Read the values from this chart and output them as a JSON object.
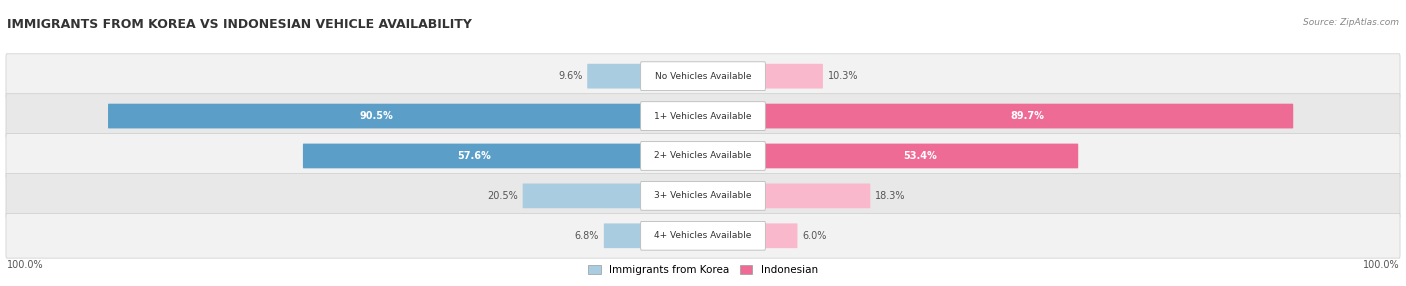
{
  "title": "IMMIGRANTS FROM KOREA VS INDONESIAN VEHICLE AVAILABILITY",
  "source": "Source: ZipAtlas.com",
  "categories": [
    "No Vehicles Available",
    "1+ Vehicles Available",
    "2+ Vehicles Available",
    "3+ Vehicles Available",
    "4+ Vehicles Available"
  ],
  "korea_values": [
    9.6,
    90.5,
    57.6,
    20.5,
    6.8
  ],
  "indonesian_values": [
    10.3,
    89.7,
    53.4,
    18.3,
    6.0
  ],
  "korea_color_light": "#aacce0",
  "korea_color_dark": "#5b9fc8",
  "indonesian_color_light": "#f9b8cb",
  "indonesian_color_dark": "#ee6b96",
  "row_bg_odd": "#f2f2f2",
  "row_bg_even": "#e8e8e8",
  "title_color": "#333333",
  "label_color": "#555555",
  "legend_korea": "Immigrants from Korea",
  "legend_indonesian": "Indonesian",
  "figsize": [
    14.06,
    2.86
  ],
  "dpi": 100
}
